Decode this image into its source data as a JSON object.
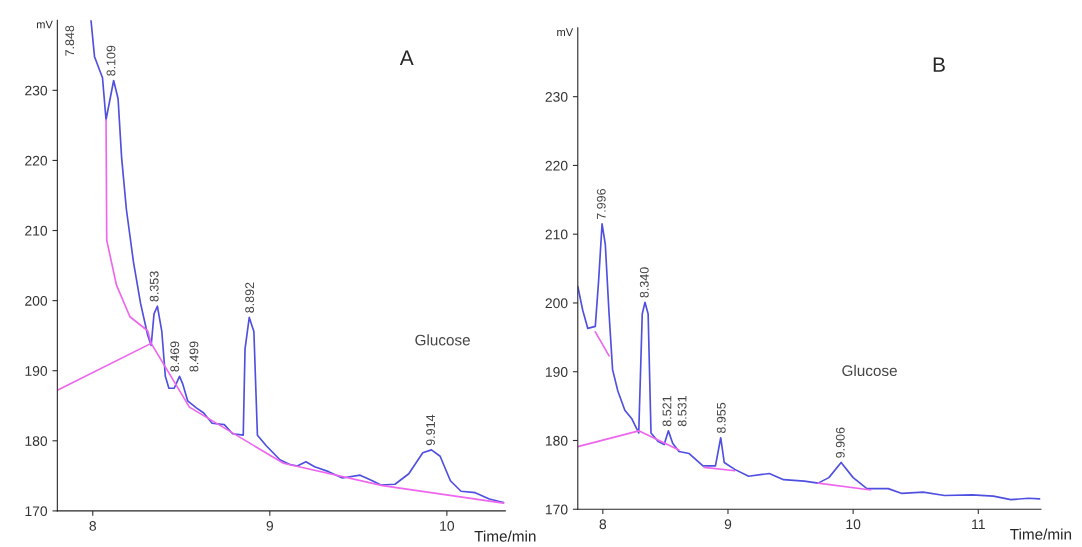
{
  "chart_data": [
    {
      "type": "line",
      "title": "A",
      "xlabel": "Time/min",
      "ylabel": "mV",
      "xlim": [
        7.8,
        10.33
      ],
      "ylim": [
        170,
        240
      ],
      "xticks": [
        8,
        9,
        10
      ],
      "yticks": [
        170,
        180,
        190,
        200,
        210,
        220,
        230
      ],
      "grid": false,
      "legend": false,
      "marker": "none",
      "line_style": "solid",
      "series": [
        {
          "color": "#5050e0",
          "x": [
            7.99,
            8.01,
            8.055,
            8.075,
            8.118,
            8.143,
            8.163,
            8.19,
            8.23,
            8.27,
            8.31,
            8.33,
            8.346,
            8.365,
            8.39,
            8.41,
            8.43,
            8.46,
            8.49,
            8.507,
            8.536,
            8.585,
            8.625,
            8.674,
            8.743,
            8.79,
            8.85,
            8.86,
            8.884,
            8.91,
            8.93,
            8.98,
            9.057,
            9.116,
            9.155,
            9.204,
            9.253,
            9.332,
            9.41,
            9.51,
            9.57,
            9.628,
            9.707,
            9.785,
            9.864,
            9.913,
            9.962,
            10.02,
            10.08,
            10.16,
            10.24,
            10.32
          ],
          "values": [
            240,
            234.8,
            231.8,
            225.8,
            231.4,
            228.8,
            220.4,
            213,
            205.5,
            199.6,
            195.1,
            193.6,
            198.1,
            199.2,
            195.6,
            189.2,
            187.5,
            187.5,
            189.2,
            188.2,
            185.7,
            184.7,
            184,
            182.5,
            182.3,
            181,
            180.8,
            193.1,
            197.6,
            195.6,
            180.8,
            179.3,
            177.3,
            176.6,
            176.4,
            177,
            176.3,
            175.6,
            174.7,
            175.1,
            174.4,
            173.7,
            173.8,
            175.3,
            178.3,
            178.7,
            177.8,
            174.3,
            172.8,
            172.6,
            171.7,
            171.2
          ]
        },
        {
          "color": "#ee66ee",
          "x": [
            7.8,
            8.33,
            8.546,
            9.077,
            9.637,
            10.32
          ],
          "values": [
            187.2,
            193.9,
            184.8,
            176.8,
            173.6,
            171.1
          ]
        },
        {
          "color": "#ee66ee",
          "x": [
            8.075,
            8.079,
            8.134,
            8.21,
            8.31,
            8.33
          ],
          "values": [
            225.8,
            208.6,
            202.2,
            197.7,
            195.7,
            193.9
          ]
        }
      ],
      "annotations": [
        "7.848",
        {
          "text": "8.109",
          "x": 8.109,
          "y": 231.4
        },
        {
          "text": "8.353",
          "x": 8.353,
          "y": 199.2
        },
        {
          "text": "8.469",
          "x": 8.469,
          "y": 189.2
        },
        {
          "text": "8.499",
          "x": 8.499,
          "y": 189.2
        },
        {
          "text": "8.892",
          "x": 8.892,
          "y": 197.6
        },
        {
          "text": "9.914",
          "x": 9.914,
          "y": 178.7
        },
        "Glucose"
      ]
    },
    {
      "type": "line",
      "title": "B",
      "xlabel": "Time/min",
      "ylabel": "mV",
      "xlim": [
        7.8,
        11.5
      ],
      "ylim": [
        170,
        240
      ],
      "xticks": [
        8,
        9,
        10,
        11
      ],
      "yticks": [
        170,
        180,
        190,
        200,
        210,
        220,
        230
      ],
      "grid": false,
      "legend": false,
      "marker": "none",
      "line_style": "solid",
      "series": [
        {
          "color": "#5050e0",
          "x": [
            7.8,
            7.84,
            7.88,
            7.94,
            7.967,
            7.994,
            8.02,
            8.05,
            8.078,
            8.12,
            8.176,
            8.23,
            8.287,
            8.315,
            8.337,
            8.362,
            8.385,
            8.44,
            8.49,
            8.524,
            8.558,
            8.608,
            8.69,
            8.8,
            8.9,
            8.942,
            8.97,
            9.054,
            9.165,
            9.33,
            9.444,
            9.61,
            9.72,
            9.806,
            9.904,
            10.0,
            10.11,
            10.28,
            10.39,
            10.56,
            10.73,
            10.95,
            11.12,
            11.26,
            11.4,
            11.49
          ],
          "values": [
            202.4,
            198.9,
            196.3,
            196.6,
            203.4,
            211.5,
            208.5,
            198.4,
            190.3,
            187.2,
            184.4,
            183.2,
            181.1,
            198.4,
            200.1,
            198.4,
            181.1,
            179.9,
            179.4,
            181.4,
            179.6,
            178.4,
            178.1,
            176.3,
            176.3,
            180.4,
            176.8,
            175.8,
            174.8,
            175.2,
            174.3,
            174.1,
            173.8,
            174.6,
            176.8,
            174.6,
            173,
            173,
            172.3,
            172.5,
            172,
            172.1,
            171.9,
            171.4,
            171.6,
            171.5
          ]
        },
        {
          "color": "#ee66ee",
          "x": [
            7.8,
            8.287,
            8.608
          ],
          "values": [
            179.1,
            181.4,
            178.6
          ]
        },
        {
          "color": "#ee66ee",
          "x": [
            8.81,
            9.054
          ],
          "values": [
            176.1,
            175.6
          ]
        },
        {
          "color": "#ee66ee",
          "x": [
            9.72,
            10.14
          ],
          "values": [
            173.8,
            172.8
          ]
        },
        {
          "color": "#ee66ee",
          "x": [
            7.94,
            8.05
          ],
          "values": [
            195.8,
            192.3
          ]
        }
      ],
      "annotations": [
        {
          "text": "7.996",
          "x": 7.996,
          "y": 211.5
        },
        {
          "text": "8.340",
          "x": 8.34,
          "y": 200.1
        },
        {
          "text": "8.521",
          "x": 8.521,
          "y": 181.4
        },
        {
          "text": "8.531",
          "x": 8.531,
          "y": 181.4
        },
        {
          "text": "8.955",
          "x": 8.955,
          "y": 180.4
        },
        {
          "text": "9.906",
          "x": 9.906,
          "y": 176.8
        },
        "Glucose"
      ]
    }
  ]
}
